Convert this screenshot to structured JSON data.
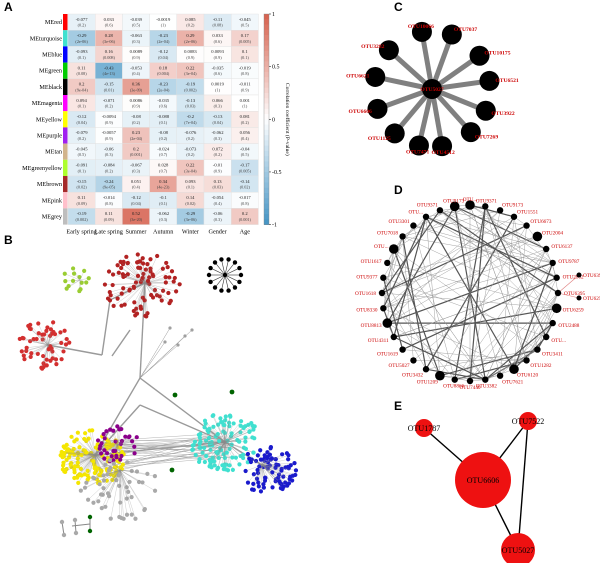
{
  "panels": {
    "a": "A",
    "b": "B",
    "c": "C",
    "d": "D",
    "e": "E"
  },
  "chart_data": [
    {
      "type": "heatmap",
      "panel": "A",
      "rows": [
        "MEred",
        "MEturquoise",
        "MEblue",
        "MEgreen",
        "MEblack",
        "MEmagenta",
        "MEyellow",
        "MEpurple",
        "MEtan",
        "MEgreenyellow",
        "MEbrown",
        "MEpink",
        "MEgrey"
      ],
      "row_colors": [
        "#ff0000",
        "#40e0d0",
        "#0000ff",
        "#00cc00",
        "#000000",
        "#ff00ff",
        "#ffff00",
        "#a020f0",
        "#d2b48c",
        "#adff2f",
        "#a52a2a",
        "#ffc0cb",
        "#bebebe"
      ],
      "columns": [
        "Early spring",
        "Late spring",
        "Summer",
        "Autumn",
        "Winter",
        "Gender",
        "Age"
      ],
      "values": [
        [
          "-0.077",
          "0.033",
          "-0.039",
          "-0.0019",
          "0.085",
          "-0.11",
          "-0.045"
        ],
        [
          "-0.29",
          "0.28",
          "-0.063",
          "-0.23",
          "0.29",
          "0.033",
          "0.17"
        ],
        [
          "-0.093",
          "0.16",
          "0.0089",
          "-0.12",
          "0.0083",
          "0.0093",
          "0.1"
        ],
        [
          "0.11",
          "-0.43",
          "-0.053",
          "0.18",
          "0.22",
          "-0.035",
          "-0.019"
        ],
        [
          "0.2",
          "-0.15",
          "0.36",
          "-0.23",
          "-0.19",
          "0.0019",
          "-0.011"
        ],
        [
          "0.094",
          "-0.071",
          "0.0086",
          "-0.035",
          "-0.13",
          "0.066",
          "0.001"
        ],
        [
          "-0.12",
          "-0.0094",
          "-0.08",
          "-0.088",
          "-0.2",
          "-0.13",
          "0.081"
        ],
        [
          "-0.079",
          "-0.0057",
          "0.23",
          "-0.08",
          "-0.076",
          "-0.062",
          "0.056"
        ],
        [
          "-0.045",
          "-0.06",
          "0.2",
          "-0.024",
          "-0.073",
          "0.072",
          "-0.04"
        ],
        [
          "-0.091",
          "-0.084",
          "-0.067",
          "0.028",
          "0.22",
          "-0.01",
          "-0.17"
        ],
        [
          "-0.15",
          "-0.24",
          "0.051",
          "0.34",
          "0.093",
          "0.13",
          "-0.14"
        ],
        [
          "0.11",
          "-0.014",
          "-0.12",
          "-0.1",
          "0.14",
          "-0.054",
          "-0.017"
        ],
        [
          "-0.19",
          "0.11",
          "0.52",
          "-0.062",
          "-0.29",
          "-0.06",
          "0.2"
        ]
      ],
      "pvalues": [
        [
          "(0.2)",
          "(0.6)",
          "(0.5)",
          "(1)",
          "(0.2)",
          "(0.08)",
          "(0.5)"
        ],
        [
          "(2e-06)",
          "(3e-06)",
          "(0.3)",
          "(2e-04)",
          "(2e-06)",
          "(0.6)",
          "(0.005)"
        ],
        [
          "(0.1)",
          "(0.008)",
          "(0.9)",
          "(0.04)",
          "(0.9)",
          "(0.9)",
          "(0.1)"
        ],
        [
          "(0.08)",
          "(4e-13)",
          "(0.4)",
          "(0.004)",
          "(3e-04)",
          "(0.6)",
          "(0.8)"
        ],
        [
          "(9e-04)",
          "(0.01)",
          "(3e-09)",
          "(2e-04)",
          "(0.002)",
          "(1)",
          "(0.9)"
        ],
        [
          "(0.1)",
          "(0.2)",
          "(0.9)",
          "(0.6)",
          "(0.03)",
          "(0.3)",
          "(1)"
        ],
        [
          "(0.04)",
          "(0.9)",
          "(0.2)",
          "(0.1)",
          "(7e-04)",
          "(0.04)",
          "(0.2)"
        ],
        [
          "(0.2)",
          "(0.9)",
          "(2e-04)",
          "(0.2)",
          "(0.2)",
          "(0.3)",
          "(0.4)"
        ],
        [
          "(0.5)",
          "(0.3)",
          "(0.001)",
          "(0.7)",
          "(0.2)",
          "(0.2)",
          "(0.5)"
        ],
        [
          "(0.1)",
          "(0.2)",
          "(0.3)",
          "(0.7)",
          "(3e-04)",
          "(0.9)",
          "(0.005)"
        ],
        [
          "(0.02)",
          "(9e-05)",
          "(0.4)",
          "(4e-23)",
          "(0.1)",
          "(0.03)",
          "(0.02)"
        ],
        [
          "(0.09)",
          "(0.8)",
          "(0.04)",
          "(0.1)",
          "(0.02)",
          "(0.4)",
          "(0.8)"
        ],
        [
          "(0.002)",
          "(0.09)",
          "(3e-20)",
          "(0.3)",
          "(3e-06)",
          "(0.3)",
          "(0.001)"
        ]
      ],
      "colorbar": {
        "title": "Correlation coefficient (P-value)",
        "ticks": [
          "1",
          "0.5",
          "0",
          "-0.5",
          "-1"
        ],
        "range": [
          -1,
          1
        ]
      }
    },
    {
      "type": "network",
      "panel": "B",
      "module_colors": [
        "#b22222",
        "#d32f2f",
        "#40e0d0",
        "#1a1acc",
        "#f5e600",
        "#8b008b",
        "#9acd32",
        "#a9a9a9",
        "#000000",
        "#006400"
      ]
    },
    {
      "type": "network",
      "panel": "C",
      "hub": "OTU5027",
      "nodes": [
        "OTU10066",
        "OTU7037",
        "OTU10175",
        "OTU6521",
        "OTU3922",
        "OTU7269",
        "OTU4512",
        "OTU7471",
        "OTU1125",
        "OTU6606",
        "OTU6621",
        "OTU3282",
        "OTU5027"
      ]
    },
    {
      "type": "network",
      "panel": "D",
      "nodes": [
        "OTU...",
        "OTU9371",
        "OTU9173",
        "OTU1551",
        "OTU6673",
        "OTU2004",
        "OTU6137",
        "OTU9787",
        "OTU2902",
        "OTU6395",
        "OTU6259",
        "OTU2488",
        "OTU...",
        "OTU3411",
        "OTU1282",
        "OTU6120",
        "OTU7621",
        "OTU3382",
        "OTU7440",
        "OTU8866",
        "OTU1209",
        "OTU3432",
        "OTU5027",
        "OTU1619",
        "OTU4311",
        "OTU8813",
        "OTU8330",
        "OTU1618",
        "OTU9377",
        "OTU1617",
        "OTU...",
        "OTU7018",
        "OTU3301"
      ]
    },
    {
      "type": "network",
      "panel": "E",
      "nodes": [
        {
          "name": "OTU6606",
          "size": "large"
        },
        {
          "name": "OTU5027",
          "size": "medium"
        },
        {
          "name": "OTU1787",
          "size": "small"
        },
        {
          "name": "OTU7522",
          "size": "small"
        }
      ],
      "edges": [
        [
          "OTU1787",
          "OTU6606"
        ],
        [
          "OTU7522",
          "OTU6606"
        ],
        [
          "OTU7522",
          "OTU5027"
        ],
        [
          "OTU6606",
          "OTU5027"
        ]
      ]
    }
  ]
}
